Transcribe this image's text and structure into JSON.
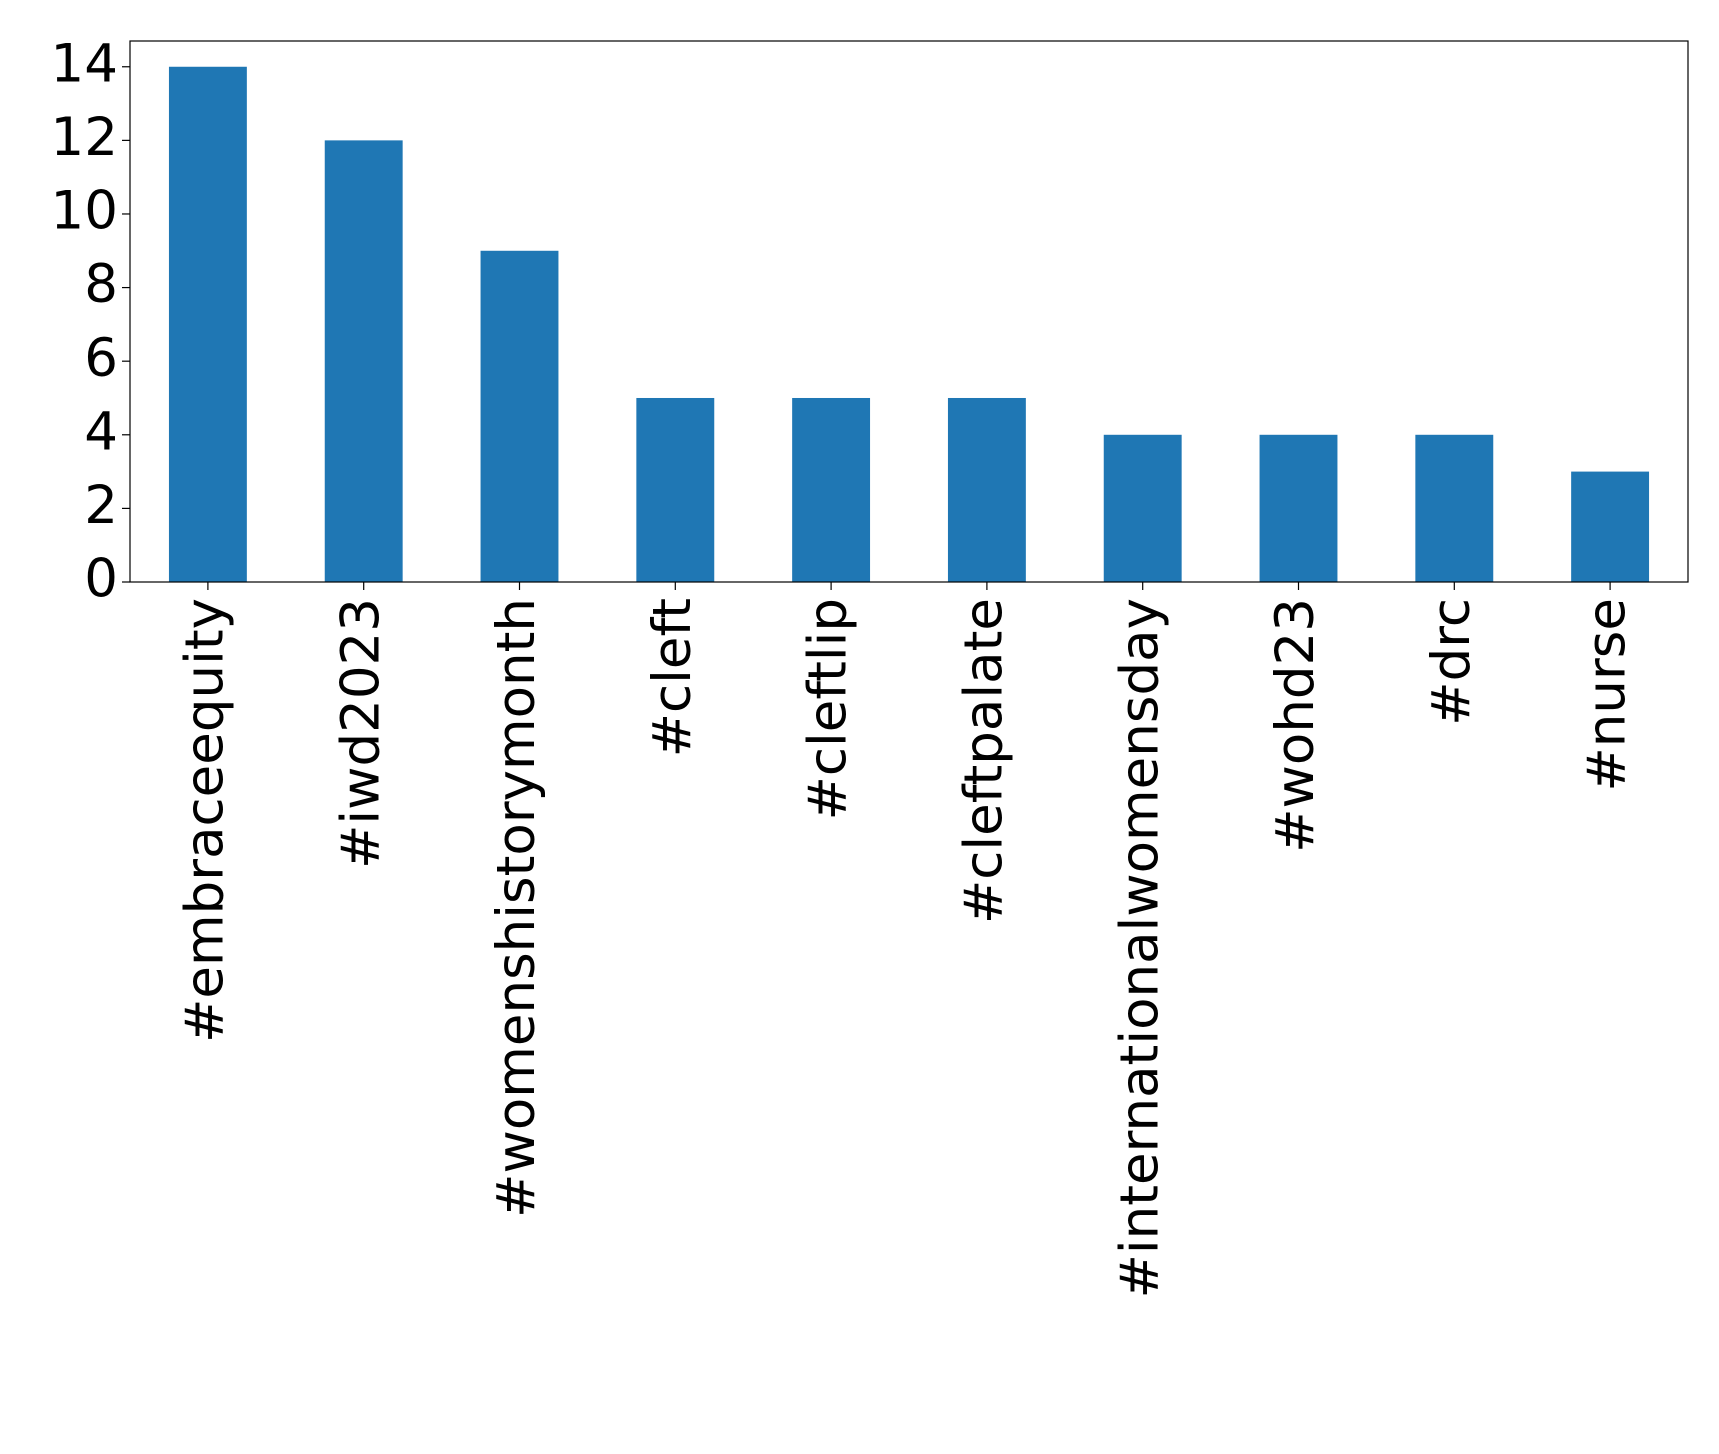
{
  "chart_data": {
    "type": "bar",
    "categories": [
      "#embraceequity",
      "#iwd2023",
      "#womenshistorymonth",
      "#cleft",
      "#cleftlip",
      "#cleftpalate",
      "#internationalwomensday",
      "#wohd23",
      "#drc",
      "#nurse"
    ],
    "values": [
      14,
      12,
      9,
      5,
      5,
      5,
      4,
      4,
      4,
      3
    ],
    "color": "#1f77b4",
    "ylim": [
      0,
      14.7
    ],
    "yticks": [
      0,
      2,
      4,
      6,
      8,
      10,
      12,
      14
    ],
    "grid": false
  }
}
